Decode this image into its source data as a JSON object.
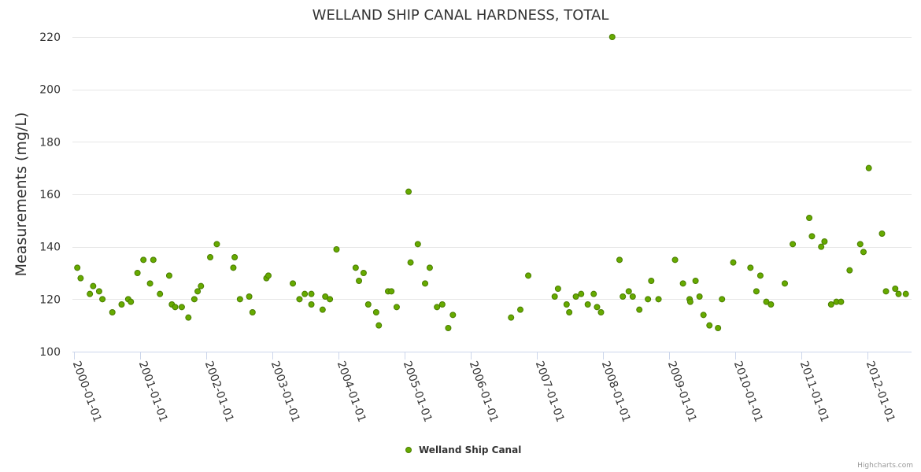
{
  "chart_data": {
    "type": "scatter",
    "title": "WELLAND SHIP CANAL HARDNESS, TOTAL",
    "ylabel": "Measurements (mg/L)",
    "xlabel": "",
    "ylim": [
      100,
      220
    ],
    "yticks": [
      100,
      120,
      140,
      160,
      180,
      200,
      220
    ],
    "xlim": [
      2000.0,
      2012.7
    ],
    "xticks": [
      {
        "value": 2000.0,
        "label": "2000-01-01"
      },
      {
        "value": 2001.0,
        "label": "2001-01-01"
      },
      {
        "value": 2002.0,
        "label": "2002-01-01"
      },
      {
        "value": 2003.0,
        "label": "2003-01-01"
      },
      {
        "value": 2004.0,
        "label": "2004-01-01"
      },
      {
        "value": 2005.0,
        "label": "2005-01-01"
      },
      {
        "value": 2006.0,
        "label": "2006-01-01"
      },
      {
        "value": 2007.0,
        "label": "2007-01-01"
      },
      {
        "value": 2008.0,
        "label": "2008-01-01"
      },
      {
        "value": 2009.0,
        "label": "2009-01-01"
      },
      {
        "value": 2010.0,
        "label": "2010-01-01"
      },
      {
        "value": 2011.0,
        "label": "2011-01-01"
      },
      {
        "value": 2012.0,
        "label": "2012-01-01"
      }
    ],
    "legend_position": "bottom-center",
    "series": [
      {
        "name": "Welland Ship Canal",
        "color": "#66aa00",
        "border_color": "#4a7d00",
        "points": [
          {
            "x": 2000.05,
            "y": 132
          },
          {
            "x": 2000.1,
            "y": 128
          },
          {
            "x": 2000.24,
            "y": 122
          },
          {
            "x": 2000.29,
            "y": 125
          },
          {
            "x": 2000.38,
            "y": 123
          },
          {
            "x": 2000.43,
            "y": 120
          },
          {
            "x": 2000.58,
            "y": 115
          },
          {
            "x": 2000.72,
            "y": 118
          },
          {
            "x": 2000.82,
            "y": 120
          },
          {
            "x": 2000.86,
            "y": 119
          },
          {
            "x": 2000.96,
            "y": 130
          },
          {
            "x": 2001.05,
            "y": 135
          },
          {
            "x": 2001.15,
            "y": 126
          },
          {
            "x": 2001.2,
            "y": 135
          },
          {
            "x": 2001.3,
            "y": 122
          },
          {
            "x": 2001.44,
            "y": 129
          },
          {
            "x": 2001.48,
            "y": 118
          },
          {
            "x": 2001.53,
            "y": 117
          },
          {
            "x": 2001.63,
            "y": 117
          },
          {
            "x": 2001.73,
            "y": 113
          },
          {
            "x": 2001.82,
            "y": 120
          },
          {
            "x": 2001.87,
            "y": 123
          },
          {
            "x": 2001.92,
            "y": 125
          },
          {
            "x": 2002.06,
            "y": 136
          },
          {
            "x": 2002.16,
            "y": 141
          },
          {
            "x": 2002.41,
            "y": 132
          },
          {
            "x": 2002.43,
            "y": 136
          },
          {
            "x": 2002.51,
            "y": 120
          },
          {
            "x": 2002.65,
            "y": 121
          },
          {
            "x": 2002.7,
            "y": 115
          },
          {
            "x": 2002.91,
            "y": 128
          },
          {
            "x": 2002.94,
            "y": 129
          },
          {
            "x": 2003.31,
            "y": 126
          },
          {
            "x": 2003.41,
            "y": 120
          },
          {
            "x": 2003.49,
            "y": 122
          },
          {
            "x": 2003.59,
            "y": 122
          },
          {
            "x": 2003.59,
            "y": 118
          },
          {
            "x": 2003.76,
            "y": 116
          },
          {
            "x": 2003.8,
            "y": 121
          },
          {
            "x": 2003.87,
            "y": 120
          },
          {
            "x": 2003.97,
            "y": 139
          },
          {
            "x": 2004.26,
            "y": 132
          },
          {
            "x": 2004.31,
            "y": 127
          },
          {
            "x": 2004.38,
            "y": 130
          },
          {
            "x": 2004.45,
            "y": 118
          },
          {
            "x": 2004.57,
            "y": 115
          },
          {
            "x": 2004.61,
            "y": 110
          },
          {
            "x": 2004.75,
            "y": 123
          },
          {
            "x": 2004.8,
            "y": 123
          },
          {
            "x": 2004.88,
            "y": 117
          },
          {
            "x": 2005.06,
            "y": 161
          },
          {
            "x": 2005.09,
            "y": 134
          },
          {
            "x": 2005.2,
            "y": 141
          },
          {
            "x": 2005.31,
            "y": 126
          },
          {
            "x": 2005.38,
            "y": 132
          },
          {
            "x": 2005.49,
            "y": 117
          },
          {
            "x": 2005.57,
            "y": 118
          },
          {
            "x": 2005.66,
            "y": 109
          },
          {
            "x": 2005.73,
            "y": 114
          },
          {
            "x": 2006.61,
            "y": 113
          },
          {
            "x": 2006.75,
            "y": 116
          },
          {
            "x": 2006.87,
            "y": 129
          },
          {
            "x": 2007.27,
            "y": 121
          },
          {
            "x": 2007.32,
            "y": 124
          },
          {
            "x": 2007.45,
            "y": 118
          },
          {
            "x": 2007.49,
            "y": 115
          },
          {
            "x": 2007.59,
            "y": 121
          },
          {
            "x": 2007.67,
            "y": 122
          },
          {
            "x": 2007.77,
            "y": 118
          },
          {
            "x": 2007.86,
            "y": 122
          },
          {
            "x": 2007.91,
            "y": 117
          },
          {
            "x": 2007.97,
            "y": 115
          },
          {
            "x": 2008.14,
            "y": 220
          },
          {
            "x": 2008.25,
            "y": 135
          },
          {
            "x": 2008.3,
            "y": 121
          },
          {
            "x": 2008.39,
            "y": 123
          },
          {
            "x": 2008.45,
            "y": 121
          },
          {
            "x": 2008.55,
            "y": 116
          },
          {
            "x": 2008.68,
            "y": 120
          },
          {
            "x": 2008.73,
            "y": 127
          },
          {
            "x": 2008.84,
            "y": 120
          },
          {
            "x": 2009.09,
            "y": 135
          },
          {
            "x": 2009.21,
            "y": 126
          },
          {
            "x": 2009.31,
            "y": 120
          },
          {
            "x": 2009.32,
            "y": 119
          },
          {
            "x": 2009.4,
            "y": 127
          },
          {
            "x": 2009.46,
            "y": 121
          },
          {
            "x": 2009.52,
            "y": 114
          },
          {
            "x": 2009.61,
            "y": 110
          },
          {
            "x": 2009.74,
            "y": 109
          },
          {
            "x": 2009.8,
            "y": 120
          },
          {
            "x": 2009.97,
            "y": 134
          },
          {
            "x": 2010.23,
            "y": 132
          },
          {
            "x": 2010.32,
            "y": 123
          },
          {
            "x": 2010.38,
            "y": 129
          },
          {
            "x": 2010.47,
            "y": 119
          },
          {
            "x": 2010.54,
            "y": 118
          },
          {
            "x": 2010.75,
            "y": 126
          },
          {
            "x": 2010.87,
            "y": 141
          },
          {
            "x": 2011.12,
            "y": 151
          },
          {
            "x": 2011.16,
            "y": 144
          },
          {
            "x": 2011.3,
            "y": 140
          },
          {
            "x": 2011.35,
            "y": 142
          },
          {
            "x": 2011.45,
            "y": 118
          },
          {
            "x": 2011.53,
            "y": 119
          },
          {
            "x": 2011.6,
            "y": 119
          },
          {
            "x": 2011.73,
            "y": 131
          },
          {
            "x": 2011.89,
            "y": 141
          },
          {
            "x": 2011.94,
            "y": 138
          },
          {
            "x": 2012.02,
            "y": 170
          },
          {
            "x": 2012.22,
            "y": 145
          },
          {
            "x": 2012.28,
            "y": 123
          },
          {
            "x": 2012.42,
            "y": 124
          },
          {
            "x": 2012.47,
            "y": 122
          },
          {
            "x": 2012.58,
            "y": 122
          }
        ]
      }
    ]
  },
  "credits": "Highcharts.com"
}
